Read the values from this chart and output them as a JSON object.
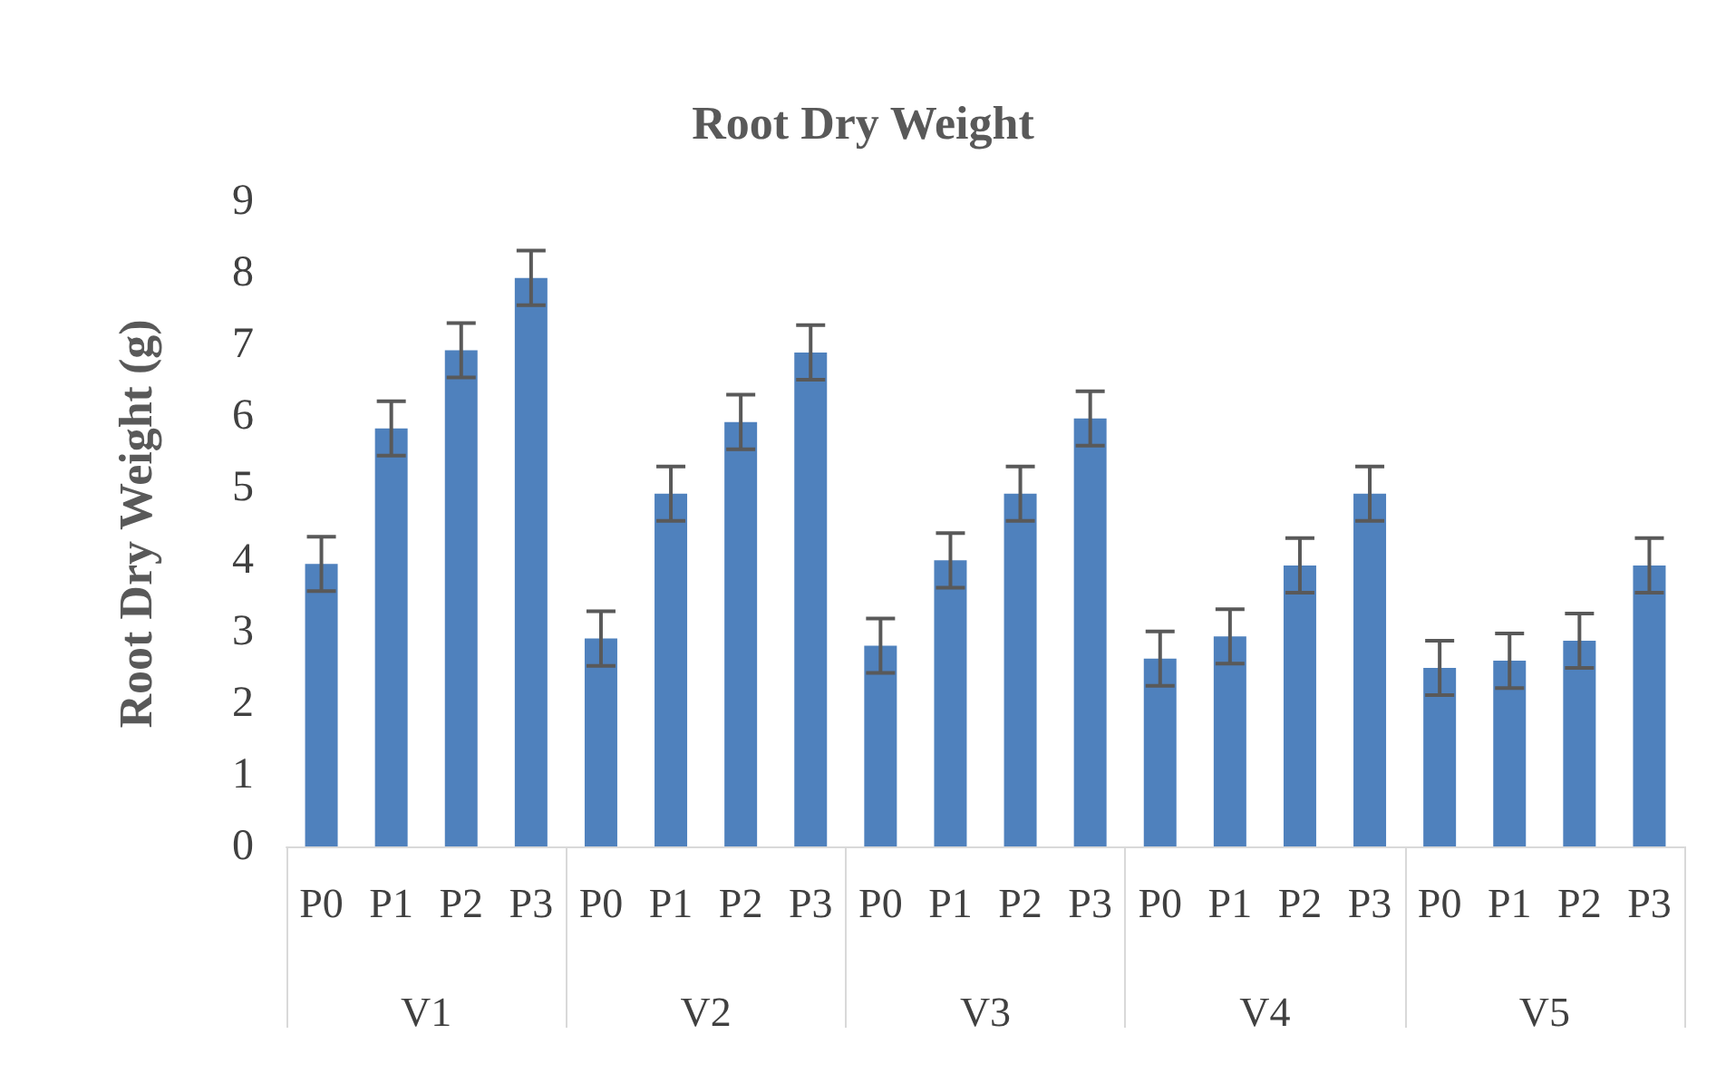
{
  "chart_data": {
    "type": "bar",
    "title": "Root Dry Weight",
    "ylabel": "Root Dry Weight (g)",
    "categories": [
      "P0",
      "P1",
      "P2",
      "P3",
      "P0",
      "P1",
      "P2",
      "P3",
      "P0",
      "P1",
      "P2",
      "P3",
      "P0",
      "P1",
      "P2",
      "P3",
      "P0",
      "P1",
      "P2",
      "P3"
    ],
    "annotations": [
      "V1",
      "V2",
      "V3",
      "V4",
      "V5"
    ],
    "values": [
      3.94,
      5.83,
      6.92,
      7.93,
      2.9,
      4.92,
      5.92,
      6.89,
      2.8,
      3.99,
      4.92,
      5.97,
      2.62,
      2.93,
      3.92,
      4.92,
      2.49,
      2.59,
      2.87,
      3.92
    ],
    "errors": [
      0.38,
      0.38,
      0.38,
      0.38,
      0.38,
      0.38,
      0.38,
      0.38,
      0.38,
      0.38,
      0.38,
      0.38,
      0.38,
      0.38,
      0.38,
      0.38,
      0.38,
      0.38,
      0.38,
      0.38
    ],
    "color": "#4f81bd",
    "ylim": [
      0,
      9
    ],
    "yticks": [
      0,
      1,
      2,
      3,
      4,
      5,
      6,
      7,
      8,
      9
    ],
    "grid": false
  }
}
